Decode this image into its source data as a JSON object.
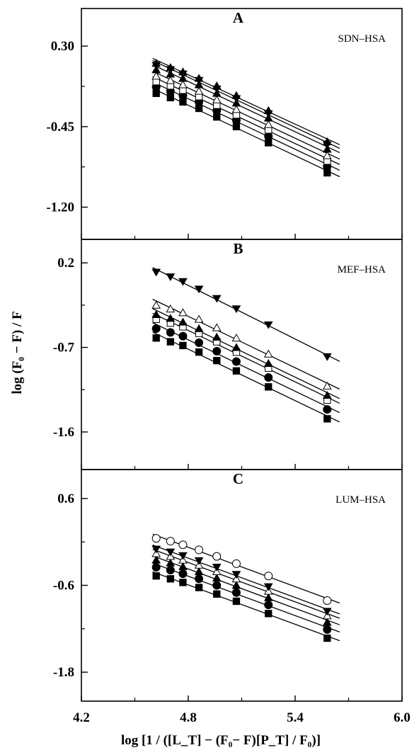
{
  "chart_data": {
    "type": "scatter",
    "ylabel": "log (F₀ − F) / F",
    "xlabel": "log [1 / ([L_T] − (F₀− F)[P_T] / F₀)]",
    "xlim": [
      4.2,
      6.0
    ],
    "xticks": [
      "4.2",
      "4.8",
      "5.4",
      "6.0"
    ],
    "x": [
      4.62,
      4.7,
      4.77,
      4.86,
      4.96,
      5.07,
      5.25,
      5.58
    ],
    "panels": [
      {
        "letter": "A",
        "label": "SDN–HSA",
        "ylim": [
          -1.5,
          0.65
        ],
        "yticks": [
          "0.30",
          "-0.45",
          "-1.20"
        ],
        "series": [
          {
            "marker": "filled-square",
            "values": [
              -0.14,
              -0.18,
              -0.22,
              -0.28,
              -0.36,
              -0.45,
              -0.6,
              -0.88
            ]
          },
          {
            "marker": "filled-circle",
            "values": [
              -0.08,
              -0.12,
              -0.16,
              -0.22,
              -0.3,
              -0.39,
              -0.54,
              -0.82
            ]
          },
          {
            "marker": "open-square",
            "values": [
              -0.03,
              -0.07,
              -0.11,
              -0.17,
              -0.25,
              -0.34,
              -0.48,
              -0.77
            ]
          },
          {
            "marker": "open-triangle",
            "values": [
              0.02,
              -0.02,
              -0.06,
              -0.12,
              -0.2,
              -0.29,
              -0.43,
              -0.72
            ]
          },
          {
            "marker": "filled-triangle",
            "values": [
              0.08,
              0.04,
              0.0,
              -0.06,
              -0.14,
              -0.23,
              -0.37,
              -0.66
            ]
          },
          {
            "marker": "filled-triangle-down",
            "values": [
              0.12,
              0.08,
              0.04,
              -0.02,
              -0.1,
              -0.19,
              -0.33,
              -0.62
            ]
          },
          {
            "marker": "filled-triangle",
            "values": [
              0.14,
              0.1,
              0.06,
              0.0,
              -0.07,
              -0.16,
              -0.3,
              -0.59
            ]
          }
        ]
      },
      {
        "letter": "B",
        "label": "MEF–HSA",
        "ylim": [
          -2.0,
          0.45
        ],
        "yticks": [
          "0.2",
          "-0.7",
          "-1.6"
        ],
        "series": [
          {
            "marker": "filled-square",
            "values": [
              -0.6,
              -0.64,
              -0.68,
              -0.75,
              -0.84,
              -0.95,
              -1.12,
              -1.46
            ]
          },
          {
            "marker": "filled-circle",
            "values": [
              -0.5,
              -0.54,
              -0.58,
              -0.65,
              -0.74,
              -0.85,
              -1.02,
              -1.36
            ]
          },
          {
            "marker": "open-square",
            "values": [
              -0.4,
              -0.44,
              -0.48,
              -0.55,
              -0.64,
              -0.75,
              -0.92,
              -1.26
            ]
          },
          {
            "marker": "filled-triangle",
            "values": [
              -0.35,
              -0.39,
              -0.43,
              -0.5,
              -0.59,
              -0.7,
              -0.87,
              -1.21
            ]
          },
          {
            "marker": "open-triangle",
            "values": [
              -0.25,
              -0.29,
              -0.33,
              -0.4,
              -0.49,
              -0.6,
              -0.77,
              -1.11
            ]
          },
          {
            "marker": "filled-triangle-down",
            "values": [
              0.1,
              0.05,
              0.0,
              -0.08,
              -0.18,
              -0.29,
              -0.46,
              -0.8
            ]
          }
        ]
      },
      {
        "letter": "C",
        "label": "LUM–HSA",
        "ylim": [
          -2.2,
          1.0
        ],
        "yticks": [
          "0.6",
          "-0.6",
          "-1.8"
        ],
        "series": [
          {
            "marker": "filled-square",
            "values": [
              -0.47,
              -0.51,
              -0.56,
              -0.63,
              -0.72,
              -0.82,
              -0.99,
              -1.33
            ]
          },
          {
            "marker": "filled-circle",
            "values": [
              -0.35,
              -0.39,
              -0.44,
              -0.51,
              -0.6,
              -0.7,
              -0.87,
              -1.21
            ]
          },
          {
            "marker": "filled-triangle",
            "values": [
              -0.25,
              -0.29,
              -0.34,
              -0.41,
              -0.5,
              -0.6,
              -0.77,
              -1.11
            ]
          },
          {
            "marker": "open-triangle",
            "values": [
              -0.16,
              -0.2,
              -0.25,
              -0.32,
              -0.41,
              -0.51,
              -0.68,
              -1.02
            ]
          },
          {
            "marker": "filled-triangle-down",
            "values": [
              -0.1,
              -0.14,
              -0.19,
              -0.26,
              -0.35,
              -0.45,
              -0.62,
              -0.96
            ]
          },
          {
            "marker": "open-circle",
            "values": [
              0.05,
              0.01,
              -0.04,
              -0.11,
              -0.2,
              -0.3,
              -0.47,
              -0.81
            ]
          }
        ]
      }
    ]
  }
}
